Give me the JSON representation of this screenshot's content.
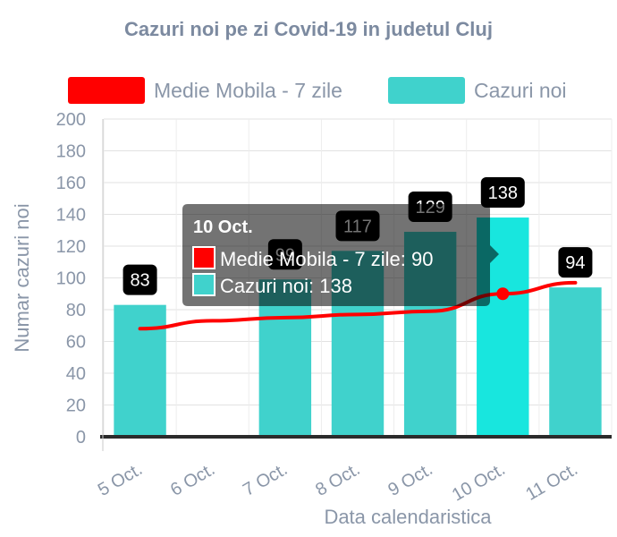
{
  "chart_data": {
    "type": "bar",
    "title": "Cazuri noi pe zi Covid-19 in judetul Cluj",
    "xlabel": "Data calendaristica",
    "ylabel": "Numar cazuri noi",
    "categories": [
      "5 Oct.",
      "6 Oct.",
      "7 Oct.",
      "8 Oct.",
      "9 Oct.",
      "10 Oct.",
      "11 Oct."
    ],
    "ylim": [
      0,
      200
    ],
    "yticks": [
      0,
      20,
      40,
      60,
      80,
      100,
      120,
      140,
      160,
      180,
      200
    ],
    "grid": true,
    "legend_position": "top",
    "series": [
      {
        "name": "Medie Mobila - 7 zile",
        "type": "line",
        "color": "#ff0000",
        "values": [
          68,
          73,
          75,
          77,
          79,
          90,
          97
        ]
      },
      {
        "name": "Cazuri noi",
        "type": "bar",
        "color": "#40d2cc",
        "values": [
          83,
          null,
          99,
          117,
          129,
          138,
          94
        ]
      }
    ],
    "data_labels": [
      "83",
      "",
      "99",
      "117",
      "129",
      "138",
      "94"
    ],
    "highlighted_index": 5,
    "highlight_bar_color": "#18e6de",
    "tooltip": {
      "title": "10 Oct.",
      "lines": [
        "Medie Mobila - 7 zile: 90",
        "Cazuri noi: 138"
      ]
    }
  }
}
